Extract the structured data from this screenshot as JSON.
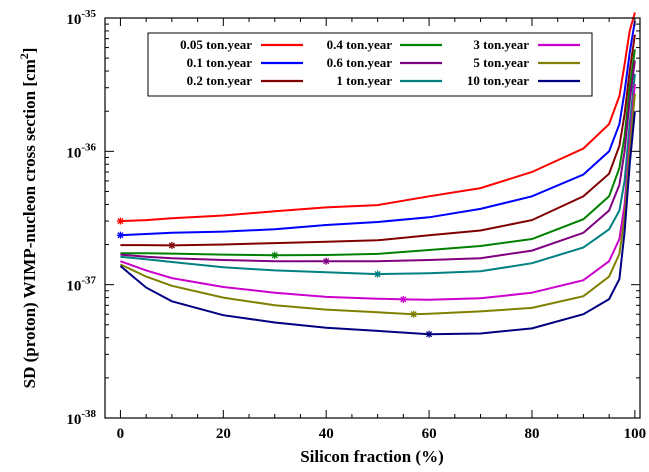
{
  "chart_data": {
    "type": "line",
    "xlabel": "Silicon fraction (%)",
    "ylabel": "SD (proton) WIMP-nucleon cross section [cm",
    "ylabel_sup": "2",
    "ylabel_close": "]",
    "xlim": [
      -3,
      101
    ],
    "ylim_log10": [
      -38,
      -35
    ],
    "y_scale": "log",
    "x_ticks": [
      0,
      20,
      40,
      60,
      80,
      100
    ],
    "x_tick_labels": [
      "0",
      "20",
      "40",
      "60",
      "80",
      "100"
    ],
    "y_ticks": [
      {
        "mantissa": "10",
        "exponent": "-38"
      },
      {
        "mantissa": "10",
        "exponent": "-37"
      },
      {
        "mantissa": "10",
        "exponent": "-36"
      },
      {
        "mantissa": "10",
        "exponent": "-35"
      }
    ],
    "legend_position": "top",
    "series": [
      {
        "name": "0.05 ton.year",
        "color": "#ff0000",
        "x": [
          0,
          5,
          10,
          20,
          30,
          40,
          50,
          60,
          70,
          80,
          90,
          95,
          97,
          98,
          99,
          100
        ],
        "y": [
          3e-37,
          3.05e-37,
          3.15e-37,
          3.3e-37,
          3.55e-37,
          3.8e-37,
          3.95e-37,
          4.6e-37,
          5.3e-37,
          7e-37,
          1.05e-36,
          1.6e-36,
          2.6e-36,
          4.5e-36,
          8e-36,
          1.1e-35
        ],
        "marker": {
          "x": 0,
          "y": 3e-37
        }
      },
      {
        "name": "0.1 ton.year",
        "color": "#0000ff",
        "x": [
          0,
          5,
          10,
          20,
          30,
          40,
          50,
          60,
          70,
          80,
          90,
          95,
          97,
          98,
          99,
          100
        ],
        "y": [
          2.35e-37,
          2.4e-37,
          2.45e-37,
          2.5e-37,
          2.6e-37,
          2.8e-37,
          2.95e-37,
          3.2e-37,
          3.7e-37,
          4.6e-37,
          6.7e-37,
          1e-36,
          1.6e-36,
          2.8e-36,
          5.5e-36,
          9.5e-36
        ],
        "marker": {
          "x": 0,
          "y": 2.35e-37
        }
      },
      {
        "name": "0.2 ton.year",
        "color": "#800000",
        "x": [
          0,
          5,
          10,
          20,
          30,
          40,
          50,
          60,
          70,
          80,
          90,
          95,
          97,
          98,
          99,
          100
        ],
        "y": [
          1.98e-37,
          1.98e-37,
          1.97e-37,
          2e-37,
          2.05e-37,
          2.1e-37,
          2.15e-37,
          2.35e-37,
          2.55e-37,
          3.05e-37,
          4.6e-37,
          6.8e-37,
          1.1e-36,
          1.9e-36,
          4e-36,
          7.5e-36
        ],
        "marker": {
          "x": 10,
          "y": 1.97e-37
        }
      },
      {
        "name": "0.4 ton.year",
        "color": "#008000",
        "x": [
          0,
          5,
          10,
          20,
          30,
          40,
          50,
          60,
          70,
          80,
          90,
          95,
          97,
          98,
          99,
          100
        ],
        "y": [
          1.72e-37,
          1.72e-37,
          1.71e-37,
          1.68e-37,
          1.66e-37,
          1.67e-37,
          1.7e-37,
          1.82e-37,
          1.95e-37,
          2.2e-37,
          3.1e-37,
          4.6e-37,
          7.5e-37,
          1.3e-36,
          3e-36,
          5.8e-36
        ],
        "marker": {
          "x": 30,
          "y": 1.66e-37
        }
      },
      {
        "name": "0.6 ton.year",
        "color": "#800080",
        "x": [
          0,
          5,
          10,
          20,
          30,
          40,
          50,
          60,
          70,
          80,
          90,
          95,
          97,
          98,
          99,
          100
        ],
        "y": [
          1.68e-37,
          1.62e-37,
          1.58e-37,
          1.53e-37,
          1.5e-37,
          1.5e-37,
          1.5e-37,
          1.53e-37,
          1.58e-37,
          1.8e-37,
          2.45e-37,
          3.6e-37,
          5.6e-37,
          1e-36,
          2.4e-36,
          4.8e-36
        ],
        "marker": {
          "x": 40,
          "y": 1.5e-37
        }
      },
      {
        "name": "1 ton.year",
        "color": "#008080",
        "x": [
          0,
          5,
          10,
          20,
          30,
          40,
          50,
          60,
          70,
          80,
          90,
          95,
          97,
          98,
          99,
          100
        ],
        "y": [
          1.62e-37,
          1.55e-37,
          1.48e-37,
          1.35e-37,
          1.28e-37,
          1.24e-37,
          1.2e-37,
          1.22e-37,
          1.26e-37,
          1.45e-37,
          1.9e-37,
          2.6e-37,
          3.6e-37,
          6e-37,
          1.6e-36,
          3.8e-36
        ],
        "marker": {
          "x": 50,
          "y": 1.2e-37
        }
      },
      {
        "name": "3 ton.year",
        "color": "#cc00cc",
        "x": [
          0,
          5,
          10,
          20,
          30,
          40,
          50,
          55,
          60,
          70,
          80,
          90,
          95,
          97,
          98,
          99,
          100
        ],
        "y": [
          1.5e-37,
          1.28e-37,
          1.12e-37,
          9.6e-38,
          8.7e-38,
          8.1e-38,
          7.85e-38,
          7.75e-38,
          7.7e-38,
          7.9e-38,
          8.7e-38,
          1.08e-37,
          1.5e-37,
          2.2e-37,
          4e-37,
          1.2e-36,
          3.2e-36
        ],
        "marker": {
          "x": 55,
          "y": 7.75e-38
        }
      },
      {
        "name": "5 ton.year",
        "color": "#808000",
        "x": [
          0,
          5,
          10,
          20,
          30,
          40,
          50,
          57,
          60,
          70,
          80,
          90,
          95,
          97,
          98,
          99,
          100
        ],
        "y": [
          1.42e-37,
          1.15e-37,
          9.8e-38,
          8e-38,
          7e-38,
          6.5e-38,
          6.2e-38,
          6e-38,
          6.05e-38,
          6.3e-38,
          6.7e-38,
          8.2e-38,
          1.15e-37,
          1.7e-37,
          3.2e-37,
          1e-36,
          2.7e-36
        ],
        "marker": {
          "x": 57,
          "y": 6e-38
        }
      },
      {
        "name": "10 ton.year",
        "color": "#000080",
        "x": [
          0,
          5,
          10,
          20,
          30,
          40,
          50,
          60,
          70,
          80,
          90,
          95,
          97,
          98,
          99,
          100
        ],
        "y": [
          1.38e-37,
          9.5e-38,
          7.5e-38,
          5.9e-38,
          5.2e-38,
          4.75e-38,
          4.5e-38,
          4.25e-38,
          4.3e-38,
          4.7e-38,
          6e-38,
          7.8e-38,
          1.1e-37,
          2.5e-37,
          8e-37,
          2e-36
        ],
        "marker": {
          "x": 60,
          "y": 4.25e-38
        }
      }
    ]
  }
}
